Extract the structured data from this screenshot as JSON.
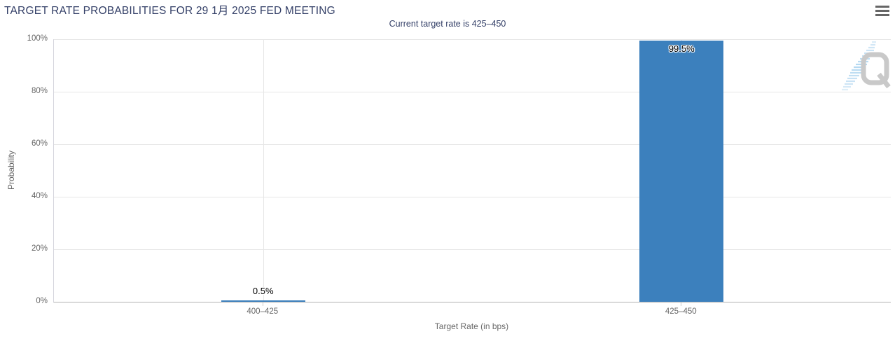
{
  "header": {
    "title": "TARGET RATE PROBABILITIES FOR 29 1月 2025 FED MEETING",
    "subtitle": "Current target rate is 425–450"
  },
  "menu": {
    "icon": "hamburger-menu-icon",
    "tooltip_label": "Chart context menu"
  },
  "colors": {
    "title_navy": "#333f67",
    "bar_blue": "#3c80bd",
    "axis_text_gray": "#666666",
    "gridline_gray": "#e6e6e6",
    "x_axis_line": "#b3b3b3",
    "y_axis_line": "#d6d6de",
    "watermark_gray": "#c9c9c9",
    "watermark_blue": "#aed5f0"
  },
  "watermark": {
    "name": "quikstrike-q-logo",
    "letter": "Q"
  },
  "chart_data": {
    "type": "bar",
    "title": "TARGET RATE PROBABILITIES FOR 29 1月 2025 FED MEETING",
    "subtitle": "Current target rate is 425–450",
    "categories": [
      "400–425",
      "425–450"
    ],
    "values": [
      0.5,
      99.5
    ],
    "value_labels": [
      "0.5%",
      "99.5%"
    ],
    "xlabel": "Target Rate (in bps)",
    "ylabel": "Probability",
    "ylim": [
      0,
      100
    ],
    "yticks": [
      0,
      20,
      40,
      60,
      80,
      100
    ],
    "ytick_labels": [
      "0%",
      "20%",
      "40%",
      "60%",
      "80%",
      "100%"
    ],
    "grid": true,
    "legend_position": "none",
    "bar_color": "#3c80bd"
  }
}
